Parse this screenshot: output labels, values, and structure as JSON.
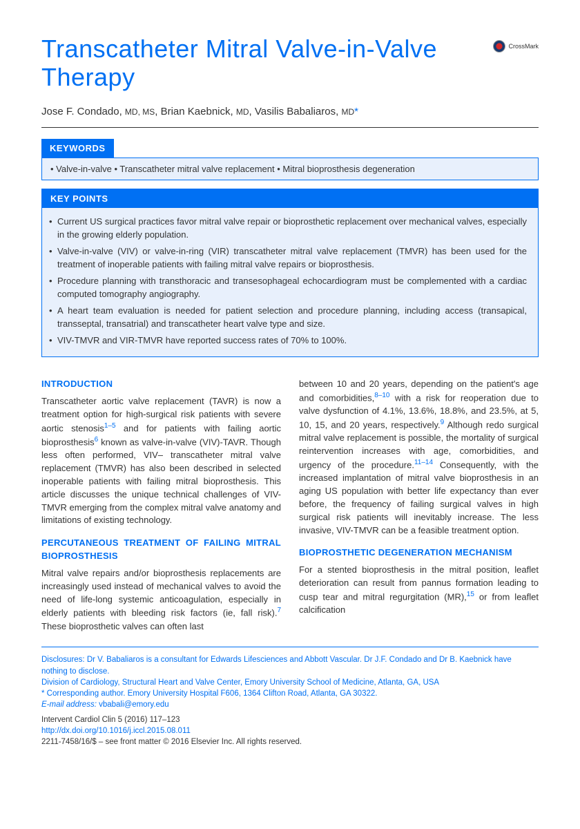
{
  "crossmark_label": "CrossMark",
  "title": "Transcatheter Mitral Valve-in-Valve Therapy",
  "authors_html": "Jose F. Condado, <span style='font-size:12px'>MD, MS</span>, Brian Kaebnick, <span style='font-size:12px'>MD</span>, Vasilis Babaliaros, <span style='font-size:12px'>MD</span><span class='asterisk'>*</span>",
  "keywords": {
    "header": "KEYWORDS",
    "content": "• Valve-in-valve • Transcatheter mitral valve replacement • Mitral bioprosthesis degeneration"
  },
  "keypoints": {
    "header": "KEY POINTS",
    "items": [
      "Current US surgical practices favor mitral valve repair or bioprosthetic replacement over mechanical valves, especially in the growing elderly population.",
      "Valve-in-valve (VIV) or valve-in-ring (VIR) transcatheter mitral valve replacement (TMVR) has been used for the treatment of inoperable patients with failing mitral valve repairs or bioprosthesis.",
      "Procedure planning with transthoracic and transesophageal echocardiogram must be complemented with a cardiac computed tomography angiography.",
      "A heart team evaluation is needed for patient selection and procedure planning, including access (transapical, transseptal, transatrial) and transcatheter heart valve type and size.",
      "VIV-TMVR and VIR-TMVR have reported success rates of 70% to 100%."
    ]
  },
  "body": {
    "col1": {
      "h1": "INTRODUCTION",
      "p1": "Transcatheter aortic valve replacement (TAVR) is now a treatment option for high-surgical risk patients with severe aortic stenosis<span class='ref-link'>1–5</span> and for patients with failing aortic bioprosthesis<span class='ref-link'>6</span> known as valve-in-valve (VIV)-TAVR. Though less often performed, VIV– transcatheter mitral valve replacement (TMVR) has also been described in selected inoperable patients with failing mitral bioprosthesis. This article discusses the unique technical challenges of VIV-TMVR emerging from the complex mitral valve anatomy and limitations of existing technology.",
      "h2": "PERCUTANEOUS TREATMENT OF FAILING MITRAL BIOPROSTHESIS",
      "p2": "Mitral valve repairs and/or bioprosthesis replacements are increasingly used instead of mechanical valves to avoid the need of life-long systemic anticoagulation, especially in elderly patients with bleeding risk factors (ie, fall risk).<span class='ref-link'>7</span> These bioprosthetic valves can often last"
    },
    "col2": {
      "p1": "between 10 and 20 years, depending on the patient's age and comorbidities,<span class='ref-link'>8–10</span> with a risk for reoperation due to valve dysfunction of 4.1%, 13.6%, 18.8%, and 23.5%, at 5, 10, 15, and 20 years, respectively.<span class='ref-link'>9</span> Although redo surgical mitral valve replacement is possible, the mortality of surgical reintervention increases with age, comorbidities, and urgency of the procedure.<span class='ref-link'>11–14</span> Consequently, with the increased implantation of mitral valve bioprosthesis in an aging US population with better life expectancy than ever before, the frequency of failing surgical valves in high surgical risk patients will inevitably increase. The less invasive, VIV-TMVR can be a feasible treatment option.",
      "h2": "BIOPROSTHETIC DEGENERATION MECHANISM",
      "p2": "For a stented bioprosthesis in the mitral position, leaflet deterioration can result from pannus formation leading to cusp tear and mitral regurgitation (MR),<span class='ref-link'>15</span> or from leaflet calcification"
    }
  },
  "footer": {
    "disclosures": "Disclosures: Dr V. Babaliaros is a consultant for Edwards Lifesciences and Abbott Vascular. Dr J.F. Condado and Dr B. Kaebnick have nothing to disclose.",
    "affiliation": "Division of Cardiology, Structural Heart and Valve Center, Emory University School of Medicine, Atlanta, GA, USA",
    "corresponding": "* Corresponding author. Emory University Hospital F606, 1364 Clifton Road, Atlanta, GA 30322.",
    "email_label": "E-mail address:",
    "email": "vbabali@emory.edu",
    "journal": "Intervent Cardiol Clin 5 (2016) 117–123",
    "doi": "http://dx.doi.org/10.1016/j.iccl.2015.08.011",
    "copyright": "2211-7458/16/$ – see front matter © 2016 Elsevier Inc. All rights reserved."
  },
  "colors": {
    "primary_blue": "#0070f3",
    "light_blue_bg": "#e8f0fc",
    "text_dark": "#333333",
    "white": "#ffffff"
  }
}
